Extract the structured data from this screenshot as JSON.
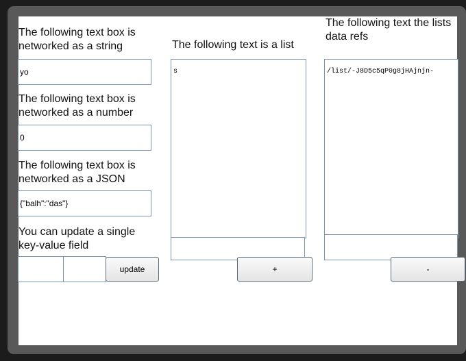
{
  "string_section": {
    "label_line1": "The following text box is",
    "label_line2": "networked as a string",
    "value": "yo"
  },
  "number_section": {
    "label_line1": "The following text box is",
    "label_line2": "networked as a number",
    "value": "0"
  },
  "json_section": {
    "label_line1": "The following text box is",
    "label_line2": "networked as a JSON",
    "value": "{\"balh\":\"das\"}"
  },
  "kv_section": {
    "label_line1": "You can update a single",
    "label_line2": "key-value field",
    "key_value": "",
    "value_value": "",
    "update_label": "update"
  },
  "list_section": {
    "label": "The following text is a list",
    "content": "s",
    "input_value": "",
    "add_label": "+"
  },
  "refs_section": {
    "label_line1": "The following text the lists",
    "label_line2": "data refs",
    "content": "/list/-J8D5c5qP0g8jHAjnjn-",
    "input_value": "",
    "remove_label": "-"
  }
}
